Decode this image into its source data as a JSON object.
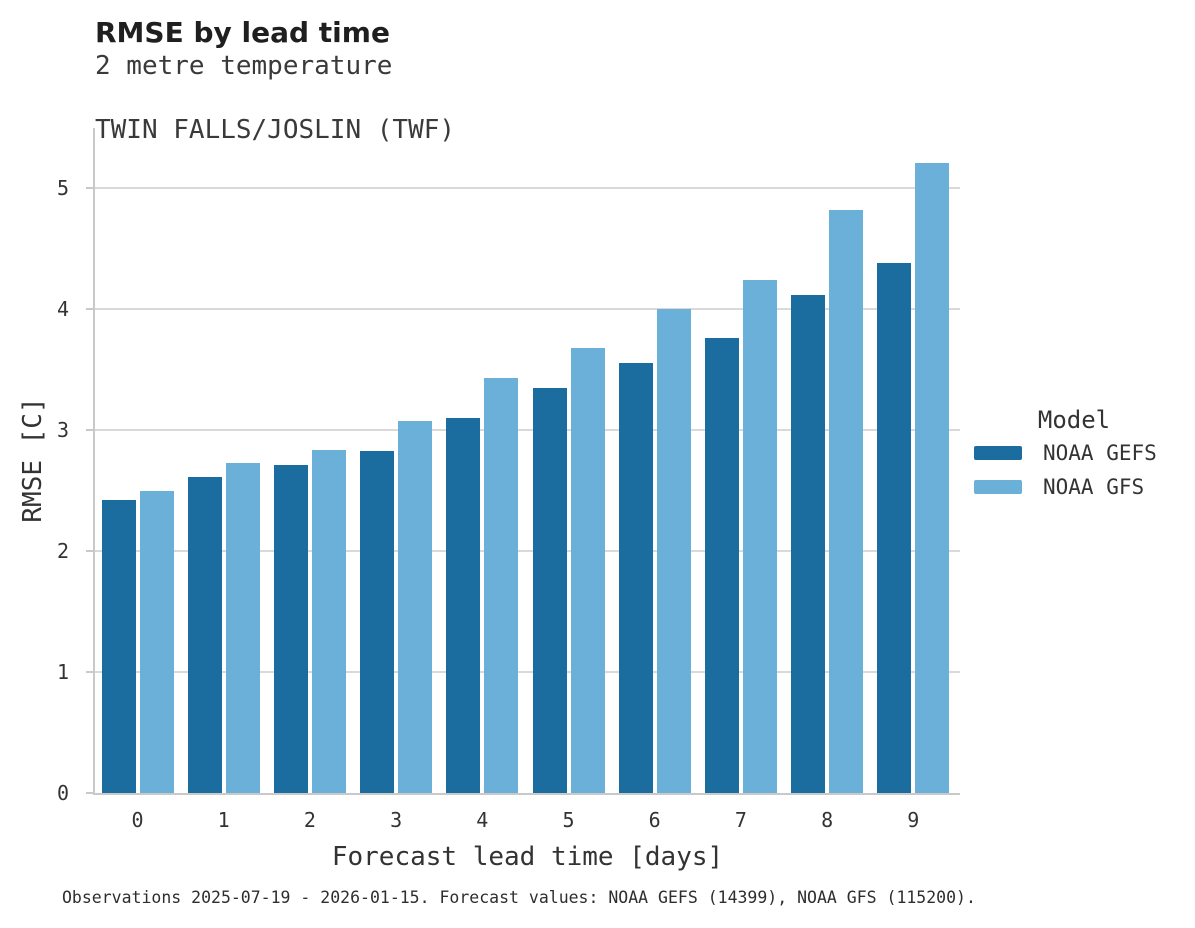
{
  "header": {
    "title": "RMSE by lead time",
    "subtitle_line1": "2 metre temperature",
    "subtitle_line2": "TWIN FALLS/JOSLIN (TWF)"
  },
  "chart_data": {
    "type": "bar",
    "title": "RMSE by lead time",
    "subtitle": [
      "2 metre temperature",
      "TWIN FALLS/JOSLIN (TWF)"
    ],
    "categories": [
      "0",
      "1",
      "2",
      "3",
      "4",
      "5",
      "6",
      "7",
      "8",
      "9"
    ],
    "series": [
      {
        "name": "NOAA GEFS",
        "color": "#1a6d9e",
        "values": [
          2.42,
          2.61,
          2.71,
          2.83,
          3.1,
          3.35,
          3.56,
          3.76,
          4.12,
          4.38
        ]
      },
      {
        "name": "NOAA GFS",
        "color": "#6bb0d8",
        "values": [
          2.5,
          2.73,
          2.84,
          3.08,
          3.43,
          3.68,
          4.0,
          4.24,
          4.82,
          5.21
        ]
      }
    ],
    "xlabel": "Forecast lead time [days]",
    "ylabel": "RMSE [C]",
    "ylim": [
      0,
      5.5
    ],
    "yticks": [
      0,
      1,
      2,
      3,
      4,
      5
    ],
    "grid": "horizontal",
    "legend": {
      "title": "Model",
      "position": "right"
    }
  },
  "colors": {
    "gefs": "#1a6d9e",
    "gfs": "#6bb0d8",
    "gridline": "#d9d9d9",
    "axis": "#c9c9c9"
  },
  "caption": "Observations 2025-07-19 - 2026-01-15. Forecast values: NOAA GEFS (14399), NOAA GFS (115200)."
}
